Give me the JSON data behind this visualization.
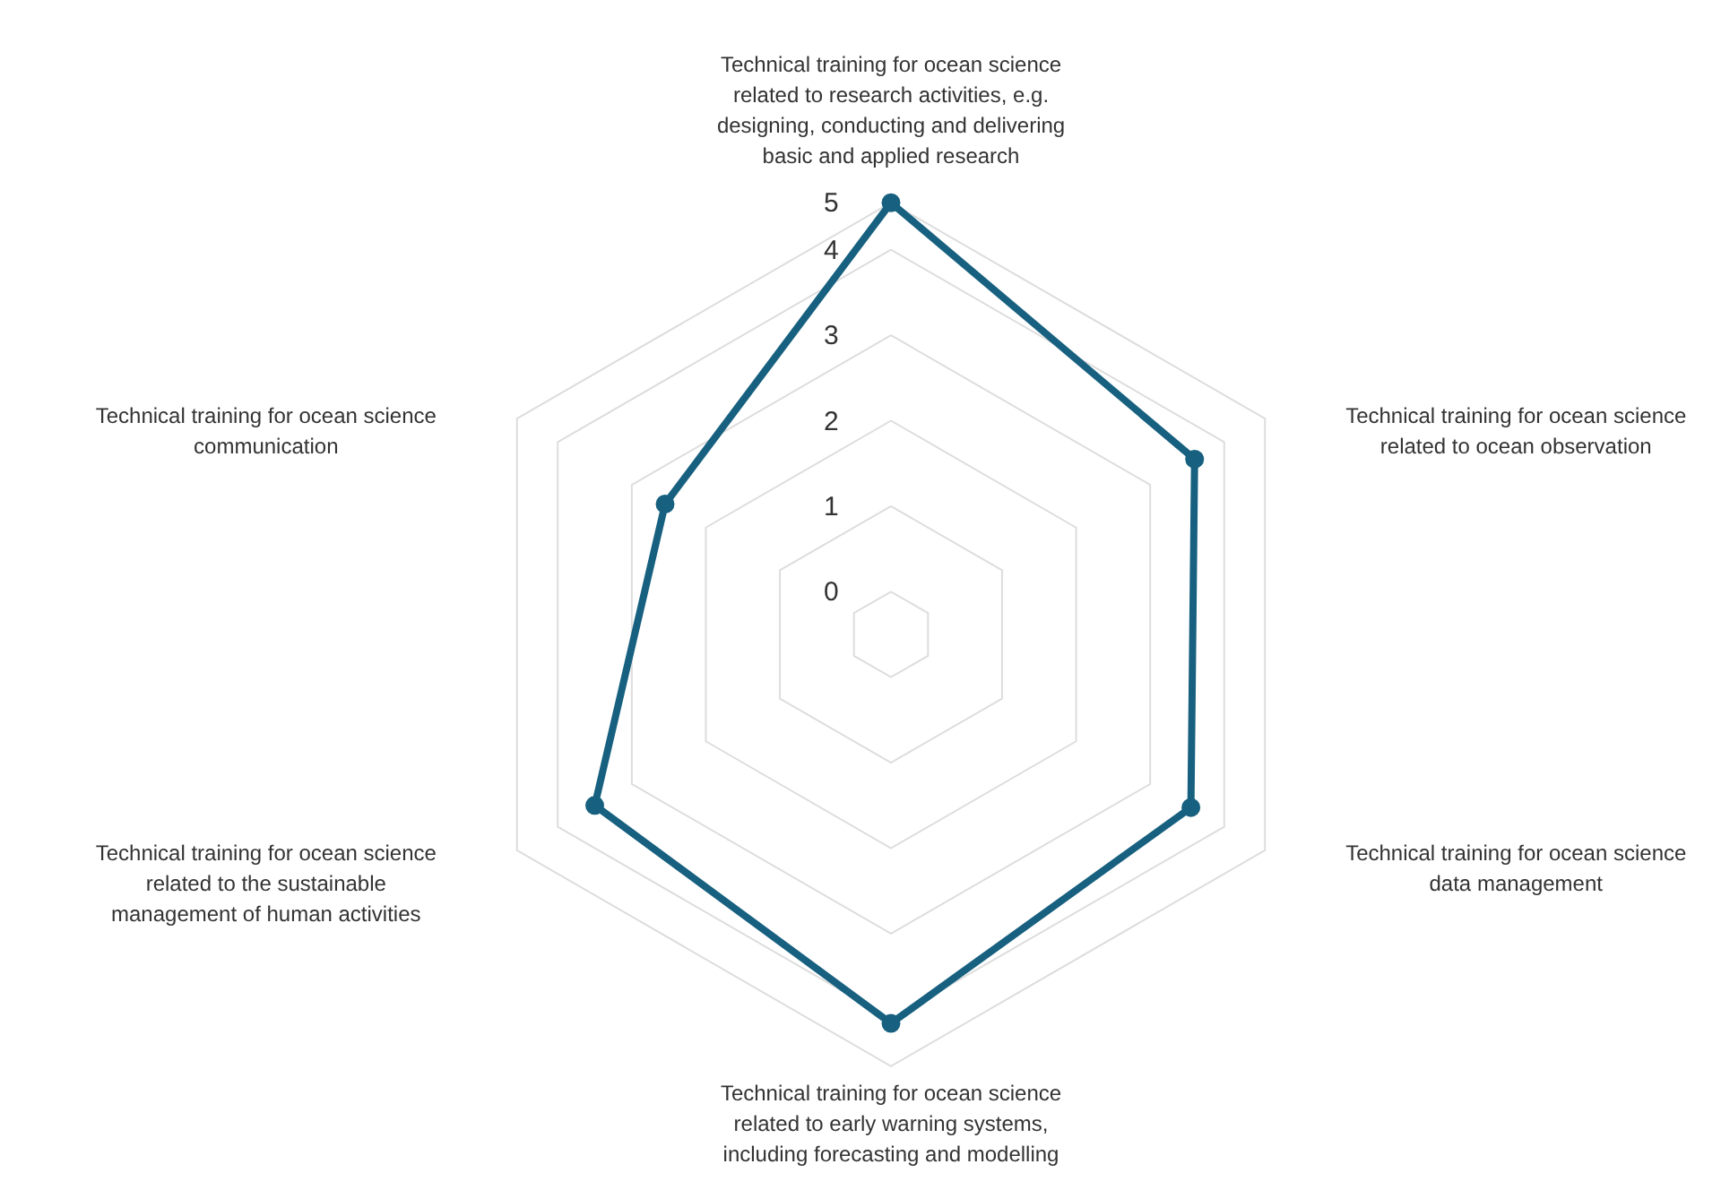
{
  "chart_data": {
    "type": "radar",
    "categories": [
      "Technical training for ocean science related to research activities, e.g. designing, conducting and delivering basic and applied research",
      "Technical training for ocean science related to ocean observation",
      "Technical training for ocean science data management",
      "Technical training for ocean science related to early warning systems, including forecasting and modelling",
      "Technical training for ocean science related to the sustainable management of human activities",
      "Technical training for ocean science communication"
    ],
    "series": [
      {
        "color": "#17607f",
        "values": [
          4.55,
          3.6,
          3.55,
          4.05,
          3.5,
          2.55
        ]
      }
    ],
    "ylim": [
      -0.5,
      4.55
    ],
    "yticks": [
      0,
      1,
      2,
      3,
      4,
      {
        "value": 4.55,
        "label": "5"
      }
    ],
    "grid": true,
    "marker": "circle",
    "line_style": "solid"
  }
}
